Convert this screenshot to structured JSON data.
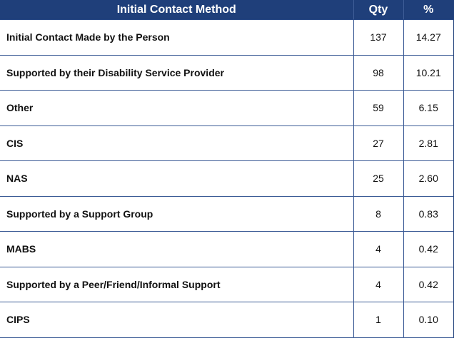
{
  "table": {
    "headers": {
      "method": "Initial Contact Method",
      "qty": "Qty",
      "pct": "%"
    },
    "rows": [
      {
        "method": "Initial Contact Made by the Person",
        "qty": "137",
        "pct": "14.27"
      },
      {
        "method": "Supported by their Disability Service Provider",
        "qty": "98",
        "pct": "10.21"
      },
      {
        "method": "Other",
        "qty": "59",
        "pct": "6.15"
      },
      {
        "method": "CIS",
        "qty": "27",
        "pct": "2.81"
      },
      {
        "method": "NAS",
        "qty": "25",
        "pct": "2.60"
      },
      {
        "method": "Supported by a Support Group",
        "qty": "8",
        "pct": "0.83"
      },
      {
        "method": "MABS",
        "qty": "4",
        "pct": "0.42"
      },
      {
        "method": "Supported by a Peer/Friend/Informal Support",
        "qty": "4",
        "pct": "0.42"
      },
      {
        "method": "CIPS",
        "qty": "1",
        "pct": "0.10"
      }
    ]
  },
  "colors": {
    "header_background": "#1f3f7a",
    "header_text": "#ffffff",
    "grid_line": "#3a5a95"
  }
}
